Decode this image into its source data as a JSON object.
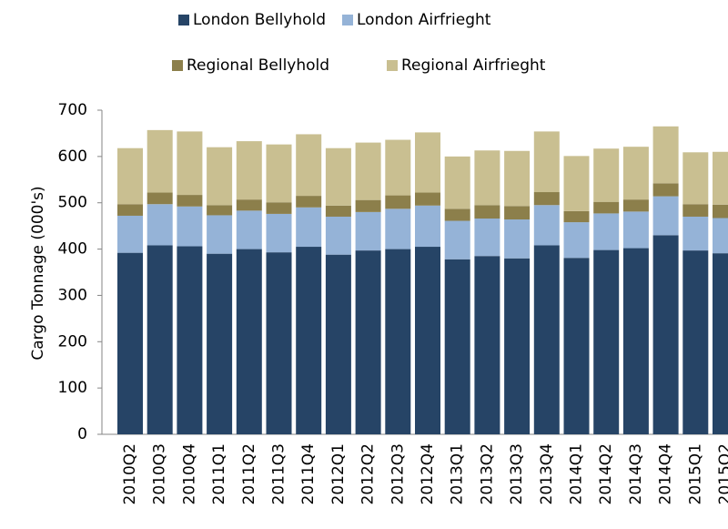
{
  "chart_data": {
    "type": "bar",
    "stacked": true,
    "y_label": "Cargo Tonnage (000's)",
    "categories": [
      "2010Q2",
      "2010Q3",
      "2010Q4",
      "2011Q1",
      "2011Q2",
      "2011Q3",
      "2011Q4",
      "2012Q1",
      "2012Q2",
      "2012Q3",
      "2012Q4",
      "2013Q1",
      "2013Q2",
      "2013Q3",
      "2013Q4",
      "2014Q1",
      "2014Q2",
      "2014Q3",
      "2014Q4",
      "2015Q1",
      "2015Q2"
    ],
    "series": [
      {
        "name": "London Bellyhold",
        "color": "#264466",
        "values": [
          392,
          408,
          406,
          390,
          400,
          393,
          405,
          388,
          397,
          400,
          405,
          378,
          385,
          380,
          408,
          381,
          398,
          402,
          430,
          397,
          391
        ]
      },
      {
        "name": "London Airfrieght",
        "color": "#95b3d7",
        "values": [
          80,
          89,
          86,
          83,
          83,
          83,
          85,
          82,
          83,
          87,
          89,
          83,
          81,
          84,
          87,
          77,
          79,
          79,
          84,
          73,
          76
        ]
      },
      {
        "name": "Regional Bellyhold",
        "color": "#8c7f4b",
        "values": [
          25,
          25,
          25,
          22,
          24,
          25,
          25,
          24,
          26,
          29,
          28,
          26,
          29,
          29,
          28,
          24,
          25,
          26,
          28,
          27,
          29
        ]
      },
      {
        "name": "Regional Airfrieght",
        "color": "#c9bf91",
        "values": [
          121,
          135,
          137,
          125,
          126,
          125,
          133,
          124,
          124,
          120,
          130,
          113,
          118,
          119,
          131,
          119,
          115,
          114,
          123,
          112,
          114
        ]
      }
    ],
    "ylim": [
      0,
      700
    ],
    "yticks": [
      0,
      100,
      200,
      300,
      400,
      500,
      600,
      700
    ]
  }
}
